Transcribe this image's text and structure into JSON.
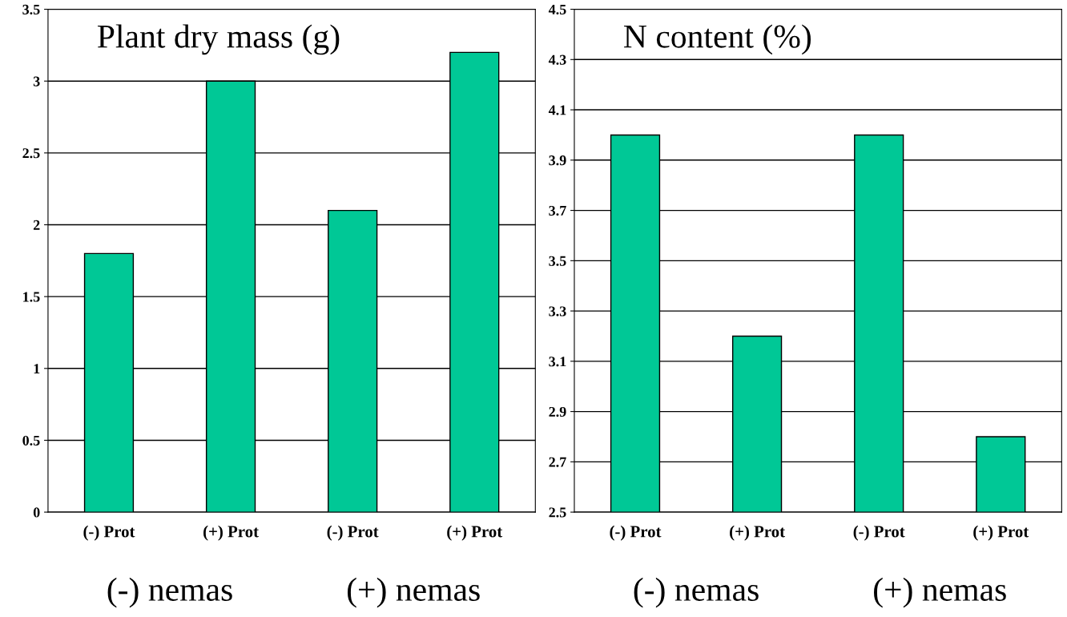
{
  "chart_data": [
    {
      "type": "bar",
      "title": "Plant dry mass (g)",
      "categories": [
        "(-) Prot",
        "(+) Prot",
        "(-) Prot",
        "(+) Prot"
      ],
      "values": [
        1.8,
        3.0,
        2.1,
        3.2
      ],
      "color": "#00c896",
      "ylim": [
        0,
        3.5
      ],
      "yticks": [
        0,
        0.5,
        1,
        1.5,
        2,
        2.5,
        3,
        3.5
      ],
      "grid": "y",
      "annotations": [
        "(-) nemas",
        "(+) nemas"
      ]
    },
    {
      "type": "bar",
      "title": "N content (%)",
      "categories": [
        "(-) Prot",
        "(+) Prot",
        "(-) Prot",
        "(+) Prot"
      ],
      "values": [
        4.0,
        3.2,
        4.0,
        2.8
      ],
      "color": "#00c896",
      "ylim": [
        2.5,
        4.5
      ],
      "yticks": [
        2.5,
        2.7,
        2.9,
        3.1,
        3.3,
        3.5,
        3.7,
        3.9,
        4.1,
        4.3,
        4.5
      ],
      "grid": "y",
      "annotations": [
        "(-) nemas",
        "(+) nemas"
      ]
    }
  ]
}
